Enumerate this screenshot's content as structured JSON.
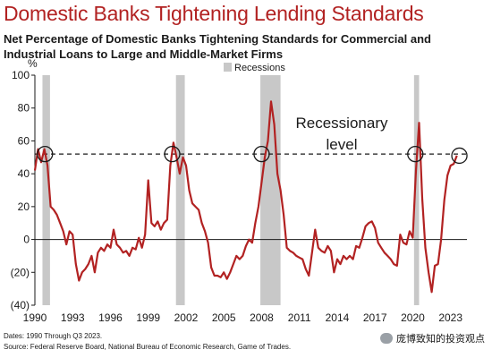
{
  "header": {
    "title": "Domestic Banks Tightening Lending Standards",
    "subtitle": "Net Percentage of Domestic Banks Tightening Standards for Commercial and Industrial Loans to Large and Middle-Market Firms"
  },
  "footer": {
    "dates": "Dates: 1990 Through Q3 2023.",
    "source": "Source: Federal Reserve Board, National Bureau of Economic Research, Game of Trades."
  },
  "watermark": {
    "text": "庞博致知的投资观点"
  },
  "chart_data": {
    "type": "line",
    "title": "Domestic Banks Tightening Lending Standards",
    "ylabel": "%",
    "xlim": [
      1990,
      2024.3
    ],
    "ylim": [
      -40,
      100
    ],
    "x_ticks": [
      1990,
      1993,
      1996,
      1999,
      2002,
      2005,
      2008,
      2011,
      2014,
      2017,
      2020,
      2023
    ],
    "y_ticks": [
      {
        "value": 100,
        "label": "100"
      },
      {
        "value": 80,
        "label": "80"
      },
      {
        "value": 60,
        "label": "60"
      },
      {
        "value": 40,
        "label": "40"
      },
      {
        "value": 20,
        "label": "20"
      },
      {
        "value": 0,
        "label": "0"
      },
      {
        "value": -20,
        "label": "(20)"
      },
      {
        "value": -40,
        "label": "(40)"
      }
    ],
    "legend": {
      "label": "Recessions",
      "position": "top"
    },
    "recessions": [
      [
        1990.6,
        1991.2
      ],
      [
        2001.2,
        2001.9
      ],
      [
        2007.9,
        2009.5
      ],
      [
        2020.1,
        2020.5
      ]
    ],
    "recessionary_level": {
      "value": 52,
      "label": [
        "Recessionary",
        "level"
      ]
    },
    "highlight_points": [
      {
        "x": 1990.8,
        "y": 52
      },
      {
        "x": 2000.9,
        "y": 52
      },
      {
        "x": 2008.0,
        "y": 52
      },
      {
        "x": 2020.2,
        "y": 52
      },
      {
        "x": 2023.7,
        "y": 51
      }
    ],
    "series": [
      {
        "color": "#b22222",
        "points": [
          [
            1990.0,
            42
          ],
          [
            1990.25,
            55
          ],
          [
            1990.5,
            47
          ],
          [
            1990.75,
            55
          ],
          [
            1991.0,
            45
          ],
          [
            1991.25,
            20
          ],
          [
            1991.5,
            18
          ],
          [
            1991.75,
            15
          ],
          [
            1992.0,
            10
          ],
          [
            1992.25,
            5
          ],
          [
            1992.5,
            -3
          ],
          [
            1992.75,
            5
          ],
          [
            1993.0,
            3
          ],
          [
            1993.25,
            -15
          ],
          [
            1993.5,
            -25
          ],
          [
            1993.75,
            -20
          ],
          [
            1994.0,
            -18
          ],
          [
            1994.25,
            -15
          ],
          [
            1994.5,
            -10
          ],
          [
            1994.75,
            -20
          ],
          [
            1995.0,
            -8
          ],
          [
            1995.25,
            -5
          ],
          [
            1995.5,
            -7
          ],
          [
            1995.75,
            -3
          ],
          [
            1996.0,
            -5
          ],
          [
            1996.25,
            6
          ],
          [
            1996.5,
            -3
          ],
          [
            1996.75,
            -5
          ],
          [
            1997.0,
            -8
          ],
          [
            1997.25,
            -7
          ],
          [
            1997.5,
            -10
          ],
          [
            1997.75,
            -5
          ],
          [
            1998.0,
            -6
          ],
          [
            1998.25,
            1
          ],
          [
            1998.5,
            -5
          ],
          [
            1998.75,
            3
          ],
          [
            1999.0,
            36
          ],
          [
            1999.25,
            10
          ],
          [
            1999.5,
            8
          ],
          [
            1999.75,
            11
          ],
          [
            2000.0,
            6
          ],
          [
            2000.25,
            10
          ],
          [
            2000.5,
            12
          ],
          [
            2000.75,
            45
          ],
          [
            2001.0,
            59
          ],
          [
            2001.25,
            50
          ],
          [
            2001.5,
            40
          ],
          [
            2001.75,
            50
          ],
          [
            2002.0,
            45
          ],
          [
            2002.25,
            30
          ],
          [
            2002.5,
            22
          ],
          [
            2002.75,
            20
          ],
          [
            2003.0,
            18
          ],
          [
            2003.25,
            10
          ],
          [
            2003.5,
            5
          ],
          [
            2003.75,
            -2
          ],
          [
            2004.0,
            -17
          ],
          [
            2004.25,
            -22
          ],
          [
            2004.5,
            -22
          ],
          [
            2004.75,
            -23
          ],
          [
            2005.0,
            -20
          ],
          [
            2005.25,
            -24
          ],
          [
            2005.5,
            -20
          ],
          [
            2005.75,
            -15
          ],
          [
            2006.0,
            -10
          ],
          [
            2006.25,
            -12
          ],
          [
            2006.5,
            -10
          ],
          [
            2006.75,
            -4
          ],
          [
            2007.0,
            0
          ],
          [
            2007.25,
            -2
          ],
          [
            2007.5,
            10
          ],
          [
            2007.75,
            20
          ],
          [
            2008.0,
            35
          ],
          [
            2008.25,
            50
          ],
          [
            2008.5,
            60
          ],
          [
            2008.75,
            84
          ],
          [
            2009.0,
            70
          ],
          [
            2009.25,
            40
          ],
          [
            2009.5,
            30
          ],
          [
            2009.75,
            15
          ],
          [
            2010.0,
            -5
          ],
          [
            2010.25,
            -7
          ],
          [
            2010.5,
            -8
          ],
          [
            2010.75,
            -10
          ],
          [
            2011.0,
            -11
          ],
          [
            2011.25,
            -12
          ],
          [
            2011.5,
            -18
          ],
          [
            2011.75,
            -22
          ],
          [
            2012.0,
            -8
          ],
          [
            2012.25,
            6
          ],
          [
            2012.5,
            -5
          ],
          [
            2012.75,
            -7
          ],
          [
            2013.0,
            -8
          ],
          [
            2013.25,
            -4
          ],
          [
            2013.5,
            -7
          ],
          [
            2013.75,
            -20
          ],
          [
            2014.0,
            -12
          ],
          [
            2014.25,
            -15
          ],
          [
            2014.5,
            -10
          ],
          [
            2014.75,
            -12
          ],
          [
            2015.0,
            -10
          ],
          [
            2015.25,
            -12
          ],
          [
            2015.5,
            -4
          ],
          [
            2015.75,
            -5
          ],
          [
            2016.0,
            1
          ],
          [
            2016.25,
            8
          ],
          [
            2016.5,
            10
          ],
          [
            2016.75,
            11
          ],
          [
            2017.0,
            7
          ],
          [
            2017.25,
            -2
          ],
          [
            2017.5,
            -5
          ],
          [
            2017.75,
            -8
          ],
          [
            2018.0,
            -10
          ],
          [
            2018.25,
            -12
          ],
          [
            2018.5,
            -15
          ],
          [
            2018.75,
            -16
          ],
          [
            2019.0,
            3
          ],
          [
            2019.25,
            -2
          ],
          [
            2019.5,
            -3
          ],
          [
            2019.75,
            5
          ],
          [
            2020.0,
            1
          ],
          [
            2020.25,
            42
          ],
          [
            2020.5,
            71
          ],
          [
            2020.75,
            25
          ],
          [
            2021.0,
            -5
          ],
          [
            2021.25,
            -20
          ],
          [
            2021.5,
            -32
          ],
          [
            2021.75,
            -16
          ],
          [
            2022.0,
            -15
          ],
          [
            2022.25,
            0
          ],
          [
            2022.5,
            24
          ],
          [
            2022.75,
            39
          ],
          [
            2023.0,
            45
          ],
          [
            2023.25,
            46
          ],
          [
            2023.5,
            51
          ]
        ]
      }
    ]
  }
}
